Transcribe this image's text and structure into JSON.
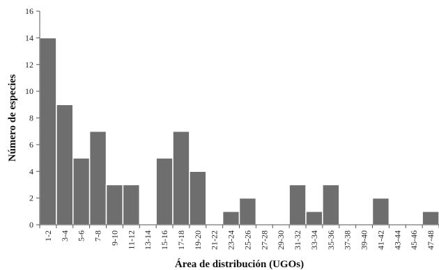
{
  "chart_data": {
    "type": "bar",
    "title": "",
    "xlabel": "Área de distribución (UGOs)",
    "ylabel": "Número de especies",
    "ylim": [
      0,
      16
    ],
    "yticks": [
      0,
      2,
      4,
      6,
      8,
      10,
      12,
      14,
      16
    ],
    "grid": false,
    "categories": [
      "1-2",
      "3-4",
      "5-6",
      "7-8",
      "9-10",
      "11-12",
      "13-14",
      "15-16",
      "17-18",
      "19-20",
      "21-22",
      "23-24",
      "25-26",
      "27-28",
      "29-30",
      "31-32",
      "33-34",
      "35-36",
      "37-38",
      "39-40",
      "41-42",
      "43-44",
      "45-46",
      "47-48"
    ],
    "values": [
      14,
      9,
      5,
      7,
      3,
      3,
      0,
      5,
      7,
      4,
      0,
      1,
      2,
      0,
      0,
      3,
      1,
      3,
      0,
      0,
      2,
      0,
      0,
      1
    ],
    "colors": {
      "bar": "#6e6e6e",
      "bar_edge": "#ffffff",
      "axis": "#555555"
    }
  }
}
